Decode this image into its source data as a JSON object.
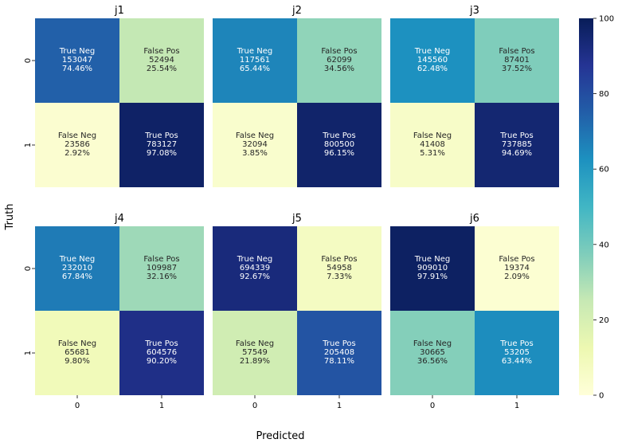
{
  "chart_data": {
    "type": "heatmap",
    "xlabel": "Predicted",
    "ylabel": "Truth",
    "x_ticks": [
      "0",
      "1"
    ],
    "y_ticks": [
      "0",
      "1"
    ],
    "colormap": "YlGnBu",
    "colorbar": {
      "min": 0,
      "max": 100,
      "ticks": [
        "0",
        "20",
        "40",
        "60",
        "80",
        "100"
      ]
    },
    "panels": [
      {
        "title": "j1",
        "cells": [
          {
            "label": "True Neg",
            "count": "153047",
            "pct_text": "74.46%",
            "pct": 74.46
          },
          {
            "label": "False Pos",
            "count": "52494",
            "pct_text": "25.54%",
            "pct": 25.54
          },
          {
            "label": "False Neg",
            "count": "23586",
            "pct_text": "2.92%",
            "pct": 2.92
          },
          {
            "label": "True Pos",
            "count": "783127",
            "pct_text": "97.08%",
            "pct": 97.08
          }
        ]
      },
      {
        "title": "j2",
        "cells": [
          {
            "label": "True Neg",
            "count": "117561",
            "pct_text": "65.44%",
            "pct": 65.44
          },
          {
            "label": "False Pos",
            "count": "62099",
            "pct_text": "34.56%",
            "pct": 34.56
          },
          {
            "label": "False Neg",
            "count": "32094",
            "pct_text": "3.85%",
            "pct": 3.85
          },
          {
            "label": "True Pos",
            "count": "800500",
            "pct_text": "96.15%",
            "pct": 96.15
          }
        ]
      },
      {
        "title": "j3",
        "cells": [
          {
            "label": "True Neg",
            "count": "145560",
            "pct_text": "62.48%",
            "pct": 62.48
          },
          {
            "label": "False Pos",
            "count": "87401",
            "pct_text": "37.52%",
            "pct": 37.52
          },
          {
            "label": "False Neg",
            "count": "41408",
            "pct_text": "5.31%",
            "pct": 5.31
          },
          {
            "label": "True Pos",
            "count": "737885",
            "pct_text": "94.69%",
            "pct": 94.69
          }
        ]
      },
      {
        "title": "j4",
        "cells": [
          {
            "label": "True Neg",
            "count": "232010",
            "pct_text": "67.84%",
            "pct": 67.84
          },
          {
            "label": "False Pos",
            "count": "109987",
            "pct_text": "32.16%",
            "pct": 32.16
          },
          {
            "label": "False Neg",
            "count": "65681",
            "pct_text": "9.80%",
            "pct": 9.8
          },
          {
            "label": "True Pos",
            "count": "604576",
            "pct_text": "90.20%",
            "pct": 90.2
          }
        ]
      },
      {
        "title": "j5",
        "cells": [
          {
            "label": "True Neg",
            "count": "694339",
            "pct_text": "92.67%",
            "pct": 92.67
          },
          {
            "label": "False Pos",
            "count": "54958",
            "pct_text": "7.33%",
            "pct": 7.33
          },
          {
            "label": "False Neg",
            "count": "57549",
            "pct_text": "21.89%",
            "pct": 21.89
          },
          {
            "label": "True Pos",
            "count": "205408",
            "pct_text": "78.11%",
            "pct": 78.11
          }
        ]
      },
      {
        "title": "j6",
        "cells": [
          {
            "label": "True Neg",
            "count": "909010",
            "pct_text": "97.91%",
            "pct": 97.91
          },
          {
            "label": "False Pos",
            "count": "19374",
            "pct_text": "2.09%",
            "pct": 2.09
          },
          {
            "label": "False Neg",
            "count": "30665",
            "pct_text": "36.56%",
            "pct": 36.56
          },
          {
            "label": "True Pos",
            "count": "53205",
            "pct_text": "63.44%",
            "pct": 63.44
          }
        ]
      }
    ]
  }
}
